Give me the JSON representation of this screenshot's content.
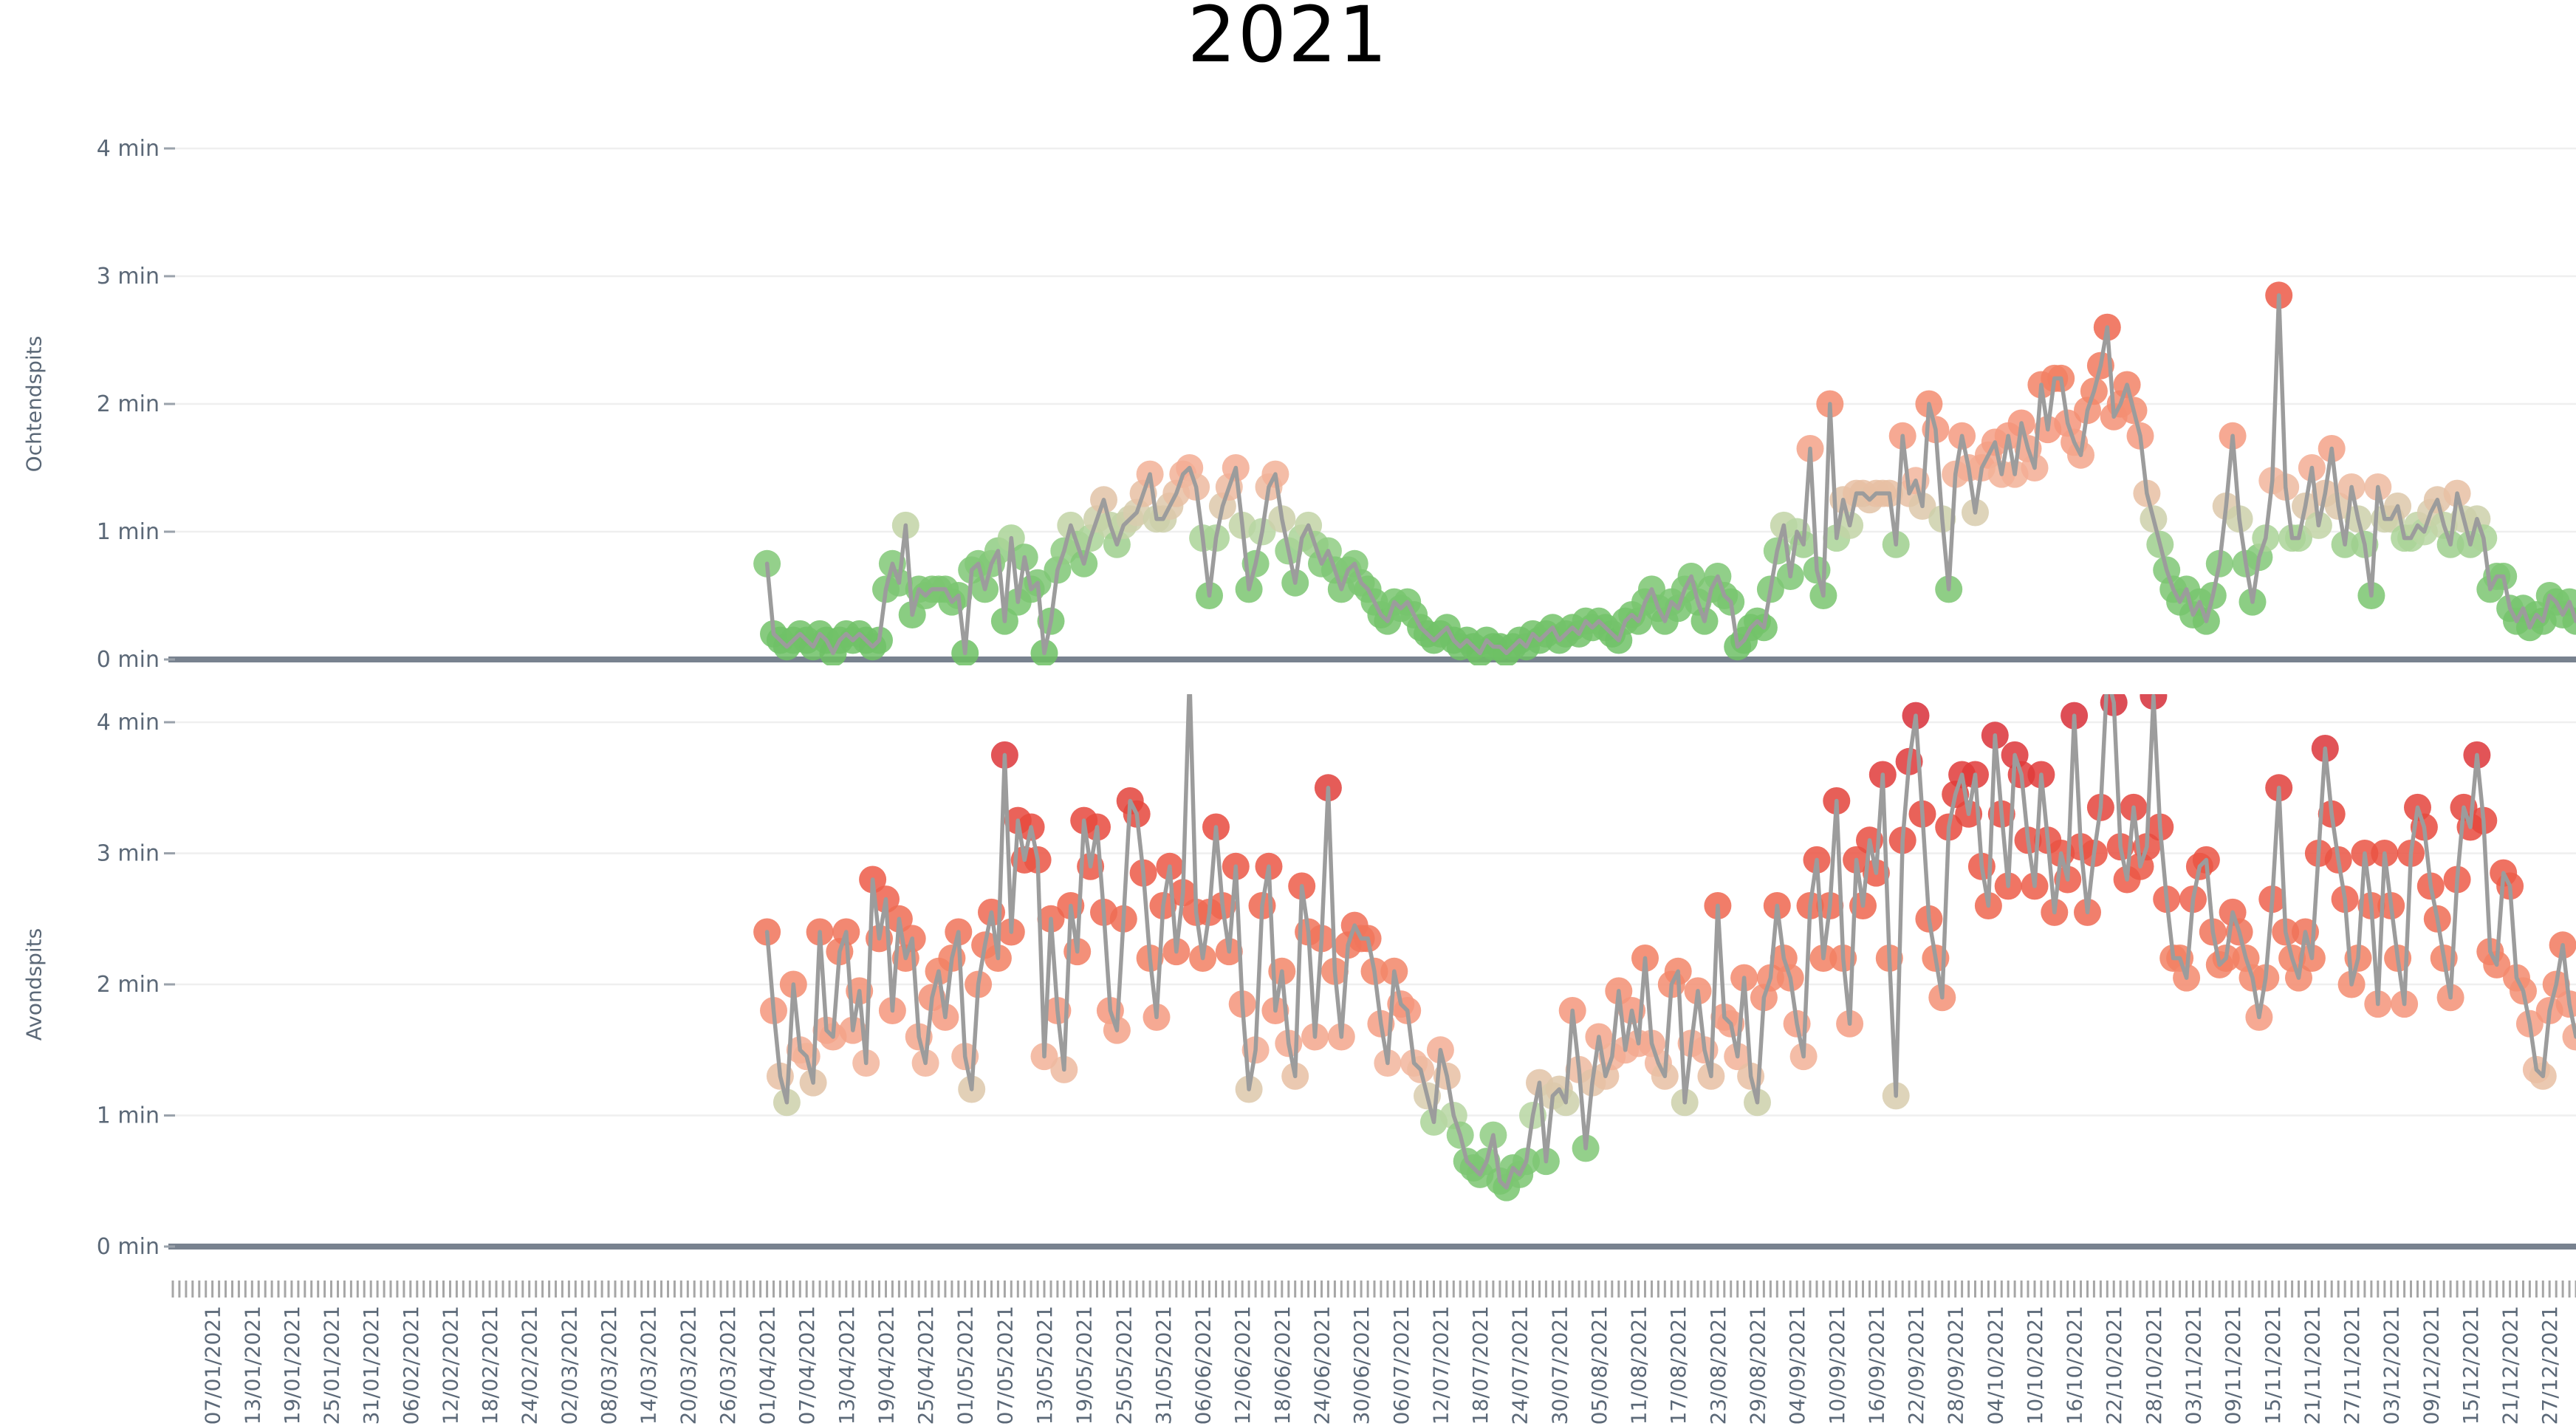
{
  "chart_data": {
    "type": "scatter",
    "title": "2021",
    "subtitle": "",
    "x_start_date": "01/04/2021",
    "x_frequency": "daily",
    "x_axis_start": "01/01/2021",
    "x_axis_end": "31/12/2021",
    "ylim": [
      0,
      4
    ],
    "grid": true,
    "legend": "none",
    "y_tick_labels": [
      "4 min",
      "3 min",
      "2 min",
      "1 min",
      "0 min"
    ],
    "x_tick_labels": [
      "07/01/2021",
      "13/01/2021",
      "19/01/2021",
      "25/01/2021",
      "31/01/2021",
      "06/02/2021",
      "12/02/2021",
      "18/02/2021",
      "24/02/2021",
      "02/03/2021",
      "08/03/2021",
      "14/03/2021",
      "20/03/2021",
      "26/03/2021",
      "01/04/2021",
      "07/04/2021",
      "13/04/2021",
      "19/04/2021",
      "25/04/2021",
      "01/05/2021",
      "07/05/2021",
      "13/05/2021",
      "19/05/2021",
      "25/05/2021",
      "31/05/2021",
      "06/06/2021",
      "12/06/2021",
      "18/06/2021",
      "24/06/2021",
      "30/06/2021",
      "06/07/2021",
      "12/07/2021",
      "18/07/2021",
      "24/07/2021",
      "30/07/2021",
      "05/08/2021",
      "11/08/2021",
      "17/08/2021",
      "23/08/2021",
      "29/08/2021",
      "04/09/2021",
      "10/09/2021",
      "16/09/2021",
      "22/09/2021",
      "28/09/2021",
      "04/10/2021",
      "10/10/2021",
      "16/10/2021",
      "22/10/2021",
      "28/10/2021",
      "03/11/2021",
      "09/11/2021",
      "15/11/2021",
      "21/11/2021",
      "27/11/2021",
      "03/12/2021",
      "09/12/2021",
      "15/12/2021",
      "21/12/2021",
      "27/12/2021"
    ],
    "panels": [
      {
        "name": "Ochtendspits",
        "unit": "min",
        "values": [
          0.75,
          0.2,
          0.15,
          0.1,
          0.15,
          0.2,
          0.15,
          0.1,
          0.2,
          0.15,
          0.05,
          0.15,
          0.2,
          0.15,
          0.2,
          0.15,
          0.1,
          0.15,
          0.55,
          0.75,
          0.6,
          1.05,
          0.35,
          0.55,
          0.5,
          0.55,
          0.55,
          0.55,
          0.45,
          0.5,
          0.05,
          0.7,
          0.75,
          0.55,
          0.75,
          0.85,
          0.3,
          0.95,
          0.45,
          0.8,
          0.55,
          0.6,
          0.05,
          0.3,
          0.7,
          0.85,
          1.05,
          0.9,
          0.75,
          0.95,
          1.1,
          1.25,
          1.05,
          0.9,
          1.05,
          1.1,
          1.15,
          1.3,
          1.45,
          1.1,
          1.1,
          1.2,
          1.3,
          1.45,
          1.5,
          1.35,
          0.95,
          0.5,
          0.95,
          1.2,
          1.35,
          1.5,
          1.05,
          0.55,
          0.75,
          1.0,
          1.35,
          1.45,
          1.1,
          0.85,
          0.6,
          0.95,
          1.05,
          0.9,
          0.75,
          0.85,
          0.7,
          0.55,
          0.7,
          0.75,
          0.6,
          0.55,
          0.45,
          0.35,
          0.3,
          0.45,
          0.4,
          0.45,
          0.35,
          0.25,
          0.2,
          0.15,
          0.2,
          0.25,
          0.15,
          0.1,
          0.15,
          0.1,
          0.05,
          0.15,
          0.1,
          0.1,
          0.05,
          0.1,
          0.15,
          0.1,
          0.2,
          0.15,
          0.2,
          0.25,
          0.15,
          0.2,
          0.25,
          0.2,
          0.3,
          0.25,
          0.3,
          0.25,
          0.2,
          0.15,
          0.3,
          0.35,
          0.3,
          0.45,
          0.55,
          0.4,
          0.3,
          0.45,
          0.4,
          0.55,
          0.65,
          0.45,
          0.3,
          0.55,
          0.65,
          0.5,
          0.45,
          0.1,
          0.15,
          0.25,
          0.3,
          0.25,
          0.55,
          0.85,
          1.05,
          0.65,
          1.0,
          0.9,
          1.65,
          0.7,
          0.5,
          2.0,
          0.95,
          1.25,
          1.05,
          1.3,
          1.3,
          1.25,
          1.3,
          1.3,
          1.3,
          0.9,
          1.75,
          1.3,
          1.4,
          1.2,
          2.0,
          1.8,
          1.1,
          0.55,
          1.45,
          1.75,
          1.5,
          1.15,
          1.5,
          1.6,
          1.7,
          1.45,
          1.75,
          1.45,
          1.85,
          1.65,
          1.5,
          2.15,
          1.8,
          2.2,
          2.2,
          1.85,
          1.7,
          1.6,
          1.95,
          2.1,
          2.3,
          2.6,
          1.9,
          2.0,
          2.15,
          1.95,
          1.75,
          1.3,
          1.1,
          0.9,
          0.7,
          0.55,
          0.45,
          0.55,
          0.35,
          0.45,
          0.3,
          0.5,
          0.75,
          1.2,
          1.75,
          1.1,
          0.75,
          0.45,
          0.8,
          0.95,
          1.4,
          2.85,
          1.35,
          0.95,
          0.95,
          1.2,
          1.5,
          1.05,
          1.3,
          1.65,
          1.2,
          0.9,
          1.35,
          1.1,
          0.9,
          0.5,
          1.35,
          1.1,
          1.1,
          1.2,
          0.95,
          0.95,
          1.05,
          1.0,
          1.15,
          1.25,
          1.05,
          0.9,
          1.3,
          1.1,
          0.9,
          1.1,
          0.95,
          0.55,
          0.65,
          0.65,
          0.4,
          0.3,
          0.4,
          0.25,
          0.35,
          0.3,
          0.5,
          0.45,
          0.35,
          0.45,
          0.3
        ]
      },
      {
        "name": "Avondspits",
        "unit": "min",
        "values": [
          2.4,
          1.8,
          1.3,
          1.1,
          2.0,
          1.5,
          1.45,
          1.25,
          2.4,
          1.65,
          1.6,
          2.25,
          2.4,
          1.65,
          1.95,
          1.4,
          2.8,
          2.35,
          2.65,
          1.8,
          2.5,
          2.2,
          2.35,
          1.6,
          1.4,
          1.9,
          2.1,
          1.75,
          2.2,
          2.4,
          1.45,
          1.2,
          2.0,
          2.3,
          2.55,
          2.2,
          3.75,
          2.4,
          3.25,
          2.95,
          3.2,
          2.95,
          1.45,
          2.5,
          1.8,
          1.35,
          2.6,
          2.25,
          3.25,
          2.9,
          3.2,
          2.55,
          1.8,
          1.65,
          2.5,
          3.4,
          3.3,
          2.85,
          2.2,
          1.75,
          2.6,
          2.9,
          2.25,
          2.7,
          4.35,
          2.55,
          2.2,
          2.55,
          3.2,
          2.6,
          2.25,
          2.9,
          1.85,
          1.2,
          1.5,
          2.6,
          2.9,
          1.8,
          2.1,
          1.55,
          1.3,
          2.75,
          2.4,
          1.6,
          2.35,
          3.5,
          2.1,
          1.6,
          2.3,
          2.45,
          2.35,
          2.35,
          2.1,
          1.7,
          1.4,
          2.1,
          1.85,
          1.8,
          1.4,
          1.35,
          1.15,
          0.95,
          1.5,
          1.3,
          1.0,
          0.85,
          0.65,
          0.6,
          0.55,
          0.65,
          0.85,
          0.5,
          0.45,
          0.6,
          0.55,
          0.65,
          1.0,
          1.25,
          0.65,
          1.15,
          1.2,
          1.1,
          1.8,
          1.35,
          0.75,
          1.25,
          1.6,
          1.3,
          1.45,
          1.95,
          1.5,
          1.8,
          1.55,
          2.2,
          1.55,
          1.4,
          1.3,
          2.0,
          2.1,
          1.1,
          1.55,
          1.95,
          1.5,
          1.3,
          2.6,
          1.75,
          1.7,
          1.45,
          2.05,
          1.3,
          1.1,
          1.9,
          2.05,
          2.6,
          2.2,
          2.05,
          1.7,
          1.45,
          2.6,
          2.95,
          2.2,
          2.6,
          3.4,
          2.2,
          1.7,
          2.95,
          2.6,
          3.1,
          2.85,
          3.6,
          2.2,
          1.15,
          3.1,
          3.7,
          4.05,
          3.3,
          2.5,
          2.2,
          1.9,
          3.2,
          3.45,
          3.6,
          3.3,
          3.6,
          2.9,
          2.6,
          3.9,
          3.3,
          2.75,
          3.75,
          3.6,
          3.1,
          2.75,
          3.6,
          3.1,
          2.55,
          3.0,
          2.8,
          4.05,
          3.05,
          2.55,
          3.0,
          3.35,
          4.35,
          4.15,
          3.05,
          2.8,
          3.35,
          2.9,
          3.05,
          4.2,
          3.2,
          2.65,
          2.2,
          2.2,
          2.05,
          2.65,
          2.9,
          2.95,
          2.4,
          2.15,
          2.2,
          2.55,
          2.4,
          2.2,
          2.05,
          1.75,
          2.05,
          2.65,
          3.5,
          2.4,
          2.2,
          2.05,
          2.4,
          2.2,
          3.0,
          3.8,
          3.3,
          2.95,
          2.65,
          2.0,
          2.2,
          3.0,
          2.6,
          1.85,
          3.0,
          2.6,
          2.2,
          1.85,
          3.0,
          3.35,
          3.2,
          2.75,
          2.5,
          2.2,
          1.9,
          2.8,
          3.35,
          3.2,
          3.75,
          3.25,
          2.25,
          2.15,
          2.85,
          2.75,
          2.05,
          1.95,
          1.7,
          1.35,
          1.3,
          1.8,
          2.0,
          2.3,
          1.85,
          1.6
        ]
      }
    ],
    "colors": {
      "line": "#9c9c9c",
      "zero_axis": "#78828f",
      "grid": "#efefef",
      "tick_text": "#5b6877",
      "x_tick_mark": "#a6a6a6",
      "y_tick_dash": "#9aa2ab",
      "title_text": "#000000",
      "value_scale": [
        [
          0.0,
          "#6cc063"
        ],
        [
          0.8,
          "#82c878"
        ],
        [
          1.0,
          "#b7d6a2"
        ],
        [
          1.15,
          "#d8cdae"
        ],
        [
          1.4,
          "#f2b59c"
        ],
        [
          1.75,
          "#f49a80"
        ],
        [
          2.15,
          "#f28366"
        ],
        [
          2.7,
          "#ee5f4a"
        ],
        [
          3.3,
          "#e5463c"
        ],
        [
          3.9,
          "#da3138"
        ],
        [
          4.5,
          "#d02a37"
        ]
      ]
    }
  }
}
